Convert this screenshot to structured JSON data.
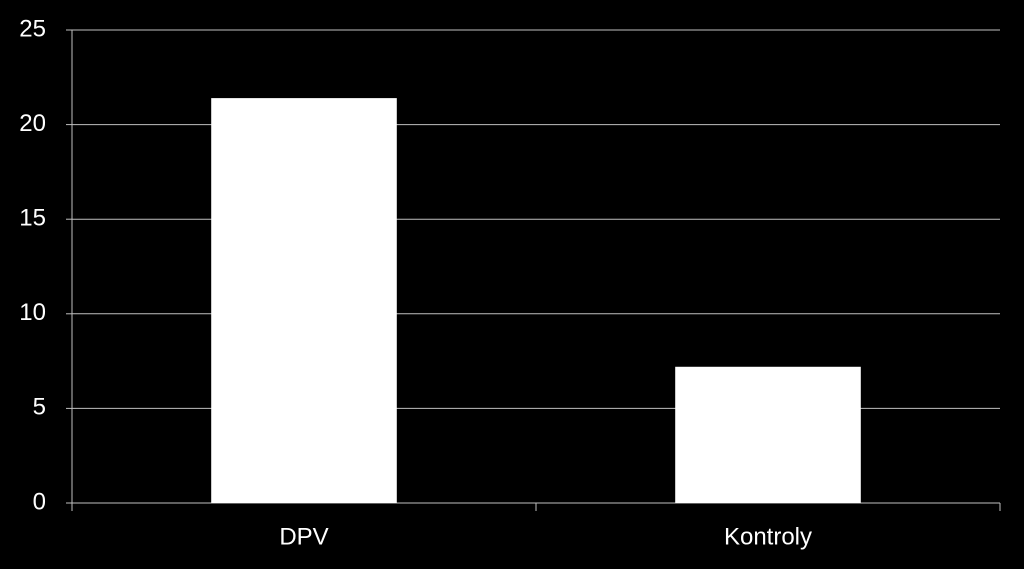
{
  "chart_data": {
    "type": "bar",
    "categories": [
      "DPV",
      "Kontroly"
    ],
    "values": [
      21.4,
      7.2
    ],
    "color": "#ffffff",
    "ylim": [
      0,
      25
    ],
    "yticks": [
      0,
      5,
      10,
      15,
      20,
      25
    ],
    "grid": true
  }
}
